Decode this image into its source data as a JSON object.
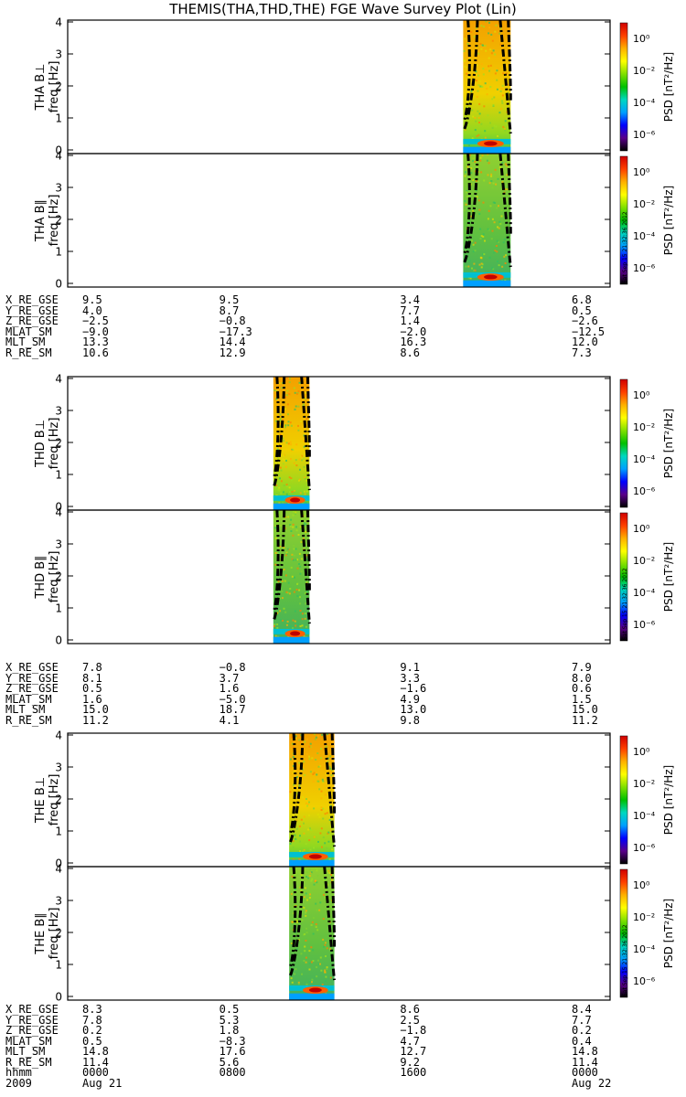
{
  "title": "THEMIS(THA,THD,THE) FGE Wave Survey Plot (Lin)",
  "colors": {
    "bg": "#ffffff",
    "axis": "#000000",
    "colorbar": [
      "#000000",
      "#5a008a",
      "#0000ff",
      "#00a0ff",
      "#00d8c0",
      "#00c000",
      "#80e000",
      "#ffff00",
      "#ffb000",
      "#ff4000",
      "#d00000"
    ]
  },
  "colorbar": {
    "label": "PSD [nT²/Hz]",
    "ticks": [
      "10⁰",
      "10⁻²",
      "10⁻⁴",
      "10⁻⁶"
    ],
    "stamp": "Sat Sep 15 21:32:36 2012"
  },
  "chart_data": {
    "type": "heatmap",
    "x_range_hours": [
      0,
      24
    ],
    "freq_range_hz": [
      0,
      4
    ],
    "yticks": [
      "4",
      "3",
      "2",
      "1",
      "0"
    ],
    "probes": [
      {
        "panels": [
          {
            "ylabel": "THA B⊥",
            "yunit": "freq [Hz]"
          },
          {
            "ylabel": "THA B∥",
            "yunit": "freq [Hz]"
          }
        ],
        "data_interval_hours": [
          17.5,
          19.6
        ],
        "orbit": [
          {
            "name": "X_RE_GSE",
            "values": [
              "9.5",
              "9.5",
              "3.4",
              "6.8"
            ]
          },
          {
            "name": "Y_RE_GSE",
            "values": [
              "4.0",
              "8.7",
              "7.7",
              "0.5"
            ]
          },
          {
            "name": "Z_RE_GSE",
            "values": [
              "−2.5",
              "−0.8",
              "1.4",
              "−2.6"
            ]
          },
          {
            "name": "MLAT_SM",
            "values": [
              "−9.0",
              "−17.3",
              "−2.0",
              "−12.5"
            ]
          },
          {
            "name": "MLT_SM",
            "values": [
              "13.3",
              "14.4",
              "16.3",
              "12.0"
            ]
          },
          {
            "name": "R_RE_SM",
            "values": [
              "10.6",
              "12.9",
              "8.6",
              "7.3"
            ]
          }
        ]
      },
      {
        "panels": [
          {
            "ylabel": "THD B⊥",
            "yunit": "freq [Hz]"
          },
          {
            "ylabel": "THD B∥",
            "yunit": "freq [Hz]"
          }
        ],
        "data_interval_hours": [
          9.1,
          10.7
        ],
        "orbit": [
          {
            "name": "X_RE_GSE",
            "values": [
              "7.8",
              "−0.8",
              "9.1",
              "7.9"
            ]
          },
          {
            "name": "Y_RE_GSE",
            "values": [
              "8.1",
              "3.7",
              "3.3",
              "8.0"
            ]
          },
          {
            "name": "Z_RE_GSE",
            "values": [
              "0.5",
              "1.6",
              "−1.6",
              "0.6"
            ]
          },
          {
            "name": "MLAT_SM",
            "values": [
              "1.6",
              "−5.0",
              "4.9",
              "1.5"
            ]
          },
          {
            "name": "MLT_SM",
            "values": [
              "15.0",
              "18.7",
              "13.0",
              "15.0"
            ]
          },
          {
            "name": "R_RE_SM",
            "values": [
              "11.2",
              "4.1",
              "9.8",
              "11.2"
            ]
          }
        ]
      },
      {
        "panels": [
          {
            "ylabel": "THE B⊥",
            "yunit": "freq [Hz]"
          },
          {
            "ylabel": "THE B∥",
            "yunit": "freq [Hz]"
          }
        ],
        "data_interval_hours": [
          9.8,
          11.8
        ],
        "orbit": [
          {
            "name": "X_RE_GSE",
            "values": [
              "8.3",
              "0.5",
              "8.6",
              "8.4"
            ]
          },
          {
            "name": "Y_RE_GSE",
            "values": [
              "7.8",
              "5.3",
              "2.5",
              "7.7"
            ]
          },
          {
            "name": "Z_RE_GSE",
            "values": [
              "0.2",
              "1.8",
              "−1.8",
              "0.2"
            ]
          },
          {
            "name": "MLAT_SM",
            "values": [
              "0.5",
              "−8.3",
              "4.7",
              "0.4"
            ]
          },
          {
            "name": "MLT_SM",
            "values": [
              "14.8",
              "17.6",
              "12.7",
              "14.8"
            ]
          },
          {
            "name": "R_RE_SM",
            "values": [
              "11.4",
              "5.6",
              "9.2",
              "11.4"
            ]
          }
        ]
      }
    ],
    "time_axis": {
      "row1_label": "hhmm",
      "row1_values": [
        "0000",
        "0800",
        "1600",
        "0000"
      ],
      "row2_label": "2009",
      "row2_values": [
        "Aug 21",
        "",
        "",
        "Aug 22"
      ]
    }
  }
}
